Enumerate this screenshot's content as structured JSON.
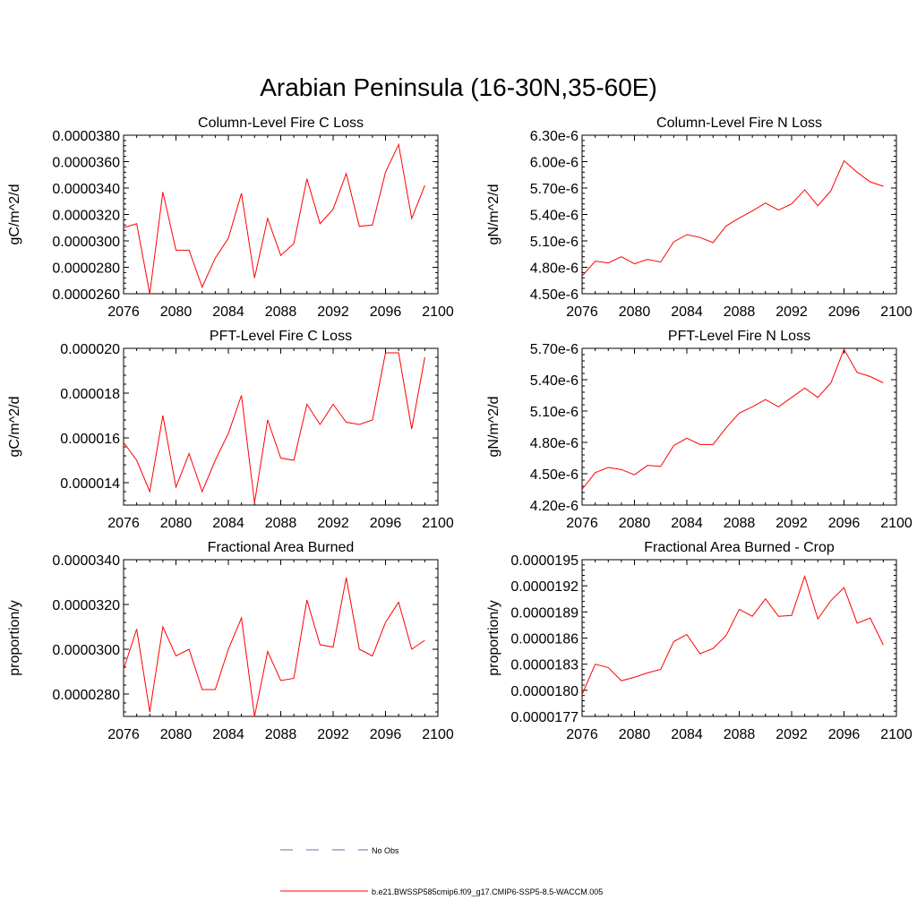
{
  "figure_title": "Arabian Peninsula (16-30N,35-60E)",
  "legend": {
    "entries": [
      {
        "label": "No Obs",
        "color": "#6c6ca8",
        "style": "dashed"
      },
      {
        "label": "b.e21.BWSSP585cmip6.f09_g17.CMIP6-SSP5-8.5-WACCM.005",
        "color": "#ff0000",
        "style": "solid"
      }
    ]
  },
  "chart_data": [
    {
      "type": "line",
      "title": "Column-Level Fire C Loss",
      "ylabel": "gC/m^2/d",
      "xlim": [
        2076,
        2100
      ],
      "ylim": [
        2.6e-05,
        3.8e-05
      ],
      "xticks": [
        "2076",
        "2080",
        "2084",
        "2088",
        "2092",
        "2096",
        "2100"
      ],
      "yticks": [
        "0.0000260",
        "0.0000280",
        "0.0000300",
        "0.0000320",
        "0.0000340",
        "0.0000360",
        "0.0000380"
      ],
      "x": [
        2076,
        2077,
        2078,
        2079,
        2080,
        2081,
        2082,
        2083,
        2084,
        2085,
        2086,
        2087,
        2088,
        2089,
        2090,
        2091,
        2092,
        2093,
        2094,
        2095,
        2096,
        2097,
        2098,
        2099
      ],
      "series": [
        {
          "color": "#ff0000",
          "values": [
            3.1e-05,
            3.13e-05,
            2.6e-05,
            3.37e-05,
            2.93e-05,
            2.93e-05,
            2.65e-05,
            2.87e-05,
            3.02e-05,
            3.36e-05,
            2.72e-05,
            3.17e-05,
            2.89e-05,
            2.98e-05,
            3.47e-05,
            3.13e-05,
            3.24e-05,
            3.51e-05,
            3.11e-05,
            3.12e-05,
            3.52e-05,
            3.73e-05,
            3.17e-05,
            3.42e-05
          ]
        }
      ]
    },
    {
      "type": "line",
      "title": "Column-Level Fire N Loss",
      "ylabel": "gN/m^2/d",
      "xlim": [
        2076,
        2100
      ],
      "ylim": [
        4.5e-06,
        6.3e-06
      ],
      "xticks": [
        "2076",
        "2080",
        "2084",
        "2088",
        "2092",
        "2096",
        "2100"
      ],
      "yticks": [
        "4.50e-6",
        "4.80e-6",
        "5.10e-6",
        "5.40e-6",
        "5.70e-6",
        "6.00e-6",
        "6.30e-6"
      ],
      "x": [
        2076,
        2077,
        2078,
        2079,
        2080,
        2081,
        2082,
        2083,
        2084,
        2085,
        2086,
        2087,
        2088,
        2089,
        2090,
        2091,
        2092,
        2093,
        2094,
        2095,
        2096,
        2097,
        2098,
        2099
      ],
      "series": [
        {
          "color": "#ff0000",
          "values": [
            4.7e-06,
            4.87e-06,
            4.85e-06,
            4.92e-06,
            4.84e-06,
            4.89e-06,
            4.86e-06,
            5.09e-06,
            5.17e-06,
            5.14e-06,
            5.08e-06,
            5.27e-06,
            5.36e-06,
            5.44e-06,
            5.53e-06,
            5.45e-06,
            5.52e-06,
            5.68e-06,
            5.5e-06,
            5.67e-06,
            6.01e-06,
            5.88e-06,
            5.77e-06,
            5.72e-06
          ]
        }
      ]
    },
    {
      "type": "line",
      "title": "PFT-Level Fire C Loss",
      "ylabel": "gC/m^2/d",
      "xlim": [
        2076,
        2100
      ],
      "ylim": [
        1.3e-05,
        2e-05
      ],
      "xticks": [
        "2076",
        "2080",
        "2084",
        "2088",
        "2092",
        "2096",
        "2100"
      ],
      "yticks": [
        "0.000014",
        "0.000016",
        "0.000018",
        "0.000020"
      ],
      "ytick_values": [
        1.4e-05,
        1.6e-05,
        1.8e-05,
        2e-05
      ],
      "x": [
        2076,
        2077,
        2078,
        2079,
        2080,
        2081,
        2082,
        2083,
        2084,
        2085,
        2086,
        2087,
        2088,
        2089,
        2090,
        2091,
        2092,
        2093,
        2094,
        2095,
        2096,
        2097,
        2098,
        2099
      ],
      "series": [
        {
          "color": "#ff0000",
          "values": [
            1.58e-05,
            1.5e-05,
            1.36e-05,
            1.7e-05,
            1.38e-05,
            1.53e-05,
            1.36e-05,
            1.5e-05,
            1.62e-05,
            1.79e-05,
            1.31e-05,
            1.68e-05,
            1.51e-05,
            1.5e-05,
            1.75e-05,
            1.66e-05,
            1.75e-05,
            1.67e-05,
            1.66e-05,
            1.68e-05,
            1.98e-05,
            1.98e-05,
            1.64e-05,
            1.96e-05
          ]
        }
      ]
    },
    {
      "type": "line",
      "title": "PFT-Level Fire N Loss",
      "ylabel": "gN/m^2/d",
      "xlim": [
        2076,
        2100
      ],
      "ylim": [
        4.2e-06,
        5.7e-06
      ],
      "xticks": [
        "2076",
        "2080",
        "2084",
        "2088",
        "2092",
        "2096",
        "2100"
      ],
      "yticks": [
        "4.20e-6",
        "4.50e-6",
        "4.80e-6",
        "5.10e-6",
        "5.40e-6",
        "5.70e-6"
      ],
      "x": [
        2076,
        2077,
        2078,
        2079,
        2080,
        2081,
        2082,
        2083,
        2084,
        2085,
        2086,
        2087,
        2088,
        2089,
        2090,
        2091,
        2092,
        2093,
        2094,
        2095,
        2096,
        2097,
        2098,
        2099
      ],
      "series": [
        {
          "color": "#ff0000",
          "values": [
            4.35e-06,
            4.51e-06,
            4.56e-06,
            4.54e-06,
            4.49e-06,
            4.58e-06,
            4.57e-06,
            4.77e-06,
            4.84e-06,
            4.78e-06,
            4.78e-06,
            4.94e-06,
            5.08e-06,
            5.14e-06,
            5.21e-06,
            5.14e-06,
            5.23e-06,
            5.32e-06,
            5.23e-06,
            5.37e-06,
            5.69e-06,
            5.47e-06,
            5.43e-06,
            5.37e-06
          ]
        }
      ]
    },
    {
      "type": "line",
      "title": "Fractional Area Burned",
      "ylabel": "proportion/y",
      "xlim": [
        2076,
        2100
      ],
      "ylim": [
        2.7e-05,
        3.4e-05
      ],
      "xticks": [
        "2076",
        "2080",
        "2084",
        "2088",
        "2092",
        "2096",
        "2100"
      ],
      "yticks": [
        "0.0000280",
        "0.0000300",
        "0.0000320",
        "0.0000340"
      ],
      "ytick_values": [
        2.8e-05,
        3e-05,
        3.2e-05,
        3.4e-05
      ],
      "x": [
        2076,
        2077,
        2078,
        2079,
        2080,
        2081,
        2082,
        2083,
        2084,
        2085,
        2086,
        2087,
        2088,
        2089,
        2090,
        2091,
        2092,
        2093,
        2094,
        2095,
        2096,
        2097,
        2098,
        2099
      ],
      "series": [
        {
          "color": "#ff0000",
          "values": [
            2.91e-05,
            3.09e-05,
            2.72e-05,
            3.1e-05,
            2.97e-05,
            3e-05,
            2.82e-05,
            2.82e-05,
            3e-05,
            3.14e-05,
            2.7e-05,
            2.99e-05,
            2.86e-05,
            2.87e-05,
            3.22e-05,
            3.02e-05,
            3.01e-05,
            3.32e-05,
            3e-05,
            2.97e-05,
            3.12e-05,
            3.21e-05,
            3e-05,
            3.04e-05
          ]
        }
      ]
    },
    {
      "type": "line",
      "title": "Fractional Area Burned - Crop",
      "ylabel": "proportion/y",
      "xlim": [
        2076,
        2100
      ],
      "ylim": [
        1.77e-05,
        1.95e-05
      ],
      "xticks": [
        "2076",
        "2080",
        "2084",
        "2088",
        "2092",
        "2096",
        "2100"
      ],
      "yticks": [
        "0.0000177",
        "0.0000180",
        "0.0000183",
        "0.0000186",
        "0.0000189",
        "0.0000192",
        "0.0000195"
      ],
      "x": [
        2076,
        2077,
        2078,
        2079,
        2080,
        2081,
        2082,
        2083,
        2084,
        2085,
        2086,
        2087,
        2088,
        2089,
        2090,
        2091,
        2092,
        2093,
        2094,
        2095,
        2096,
        2097,
        2098,
        2099
      ],
      "series": [
        {
          "color": "#ff0000",
          "values": [
            1.795e-05,
            1.83e-05,
            1.826e-05,
            1.811e-05,
            1.815e-05,
            1.82e-05,
            1.824e-05,
            1.856e-05,
            1.864e-05,
            1.842e-05,
            1.848e-05,
            1.863e-05,
            1.893e-05,
            1.885e-05,
            1.905e-05,
            1.885e-05,
            1.886e-05,
            1.931e-05,
            1.882e-05,
            1.903e-05,
            1.918e-05,
            1.877e-05,
            1.883e-05,
            1.852e-05
          ]
        }
      ]
    }
  ]
}
